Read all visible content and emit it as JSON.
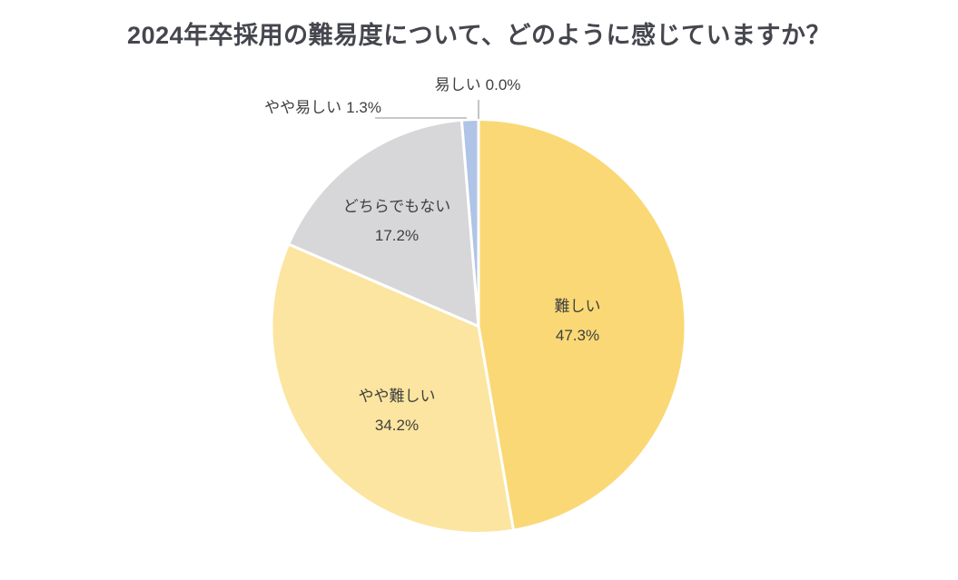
{
  "chart_data": {
    "type": "pie",
    "title": "2024年卒採用の難易度について、どのように感じていますか？",
    "direction": "clockwise",
    "start_angle_deg": 0,
    "unit": "%",
    "legend_position": "none",
    "slices": [
      {
        "label": "難しい",
        "value": 47.3,
        "pct_display": "47.3%",
        "color": "#FAD875",
        "label_placement": "inside"
      },
      {
        "label": "やや難しい",
        "value": 34.2,
        "pct_display": "34.2%",
        "color": "#FCE5A0",
        "label_placement": "inside"
      },
      {
        "label": "どちらでもない",
        "value": 17.2,
        "pct_display": "17.2%",
        "color": "#D7D7D9",
        "label_placement": "inside"
      },
      {
        "label": "やや易しい",
        "value": 1.3,
        "pct_display": "1.3%",
        "color": "#AFC4E6",
        "label_placement": "outside-left"
      },
      {
        "label": "易しい",
        "value": 0.0,
        "pct_display": "0.0%",
        "color": "#AFC4E6",
        "label_placement": "outside-top"
      }
    ],
    "style": {
      "background": "#FFFFFF",
      "slice_gap_color": "#FFFFFF",
      "label_text_color": "#404040",
      "title_color": "#45464E",
      "leader_line_color": "#A6A6A6"
    }
  }
}
